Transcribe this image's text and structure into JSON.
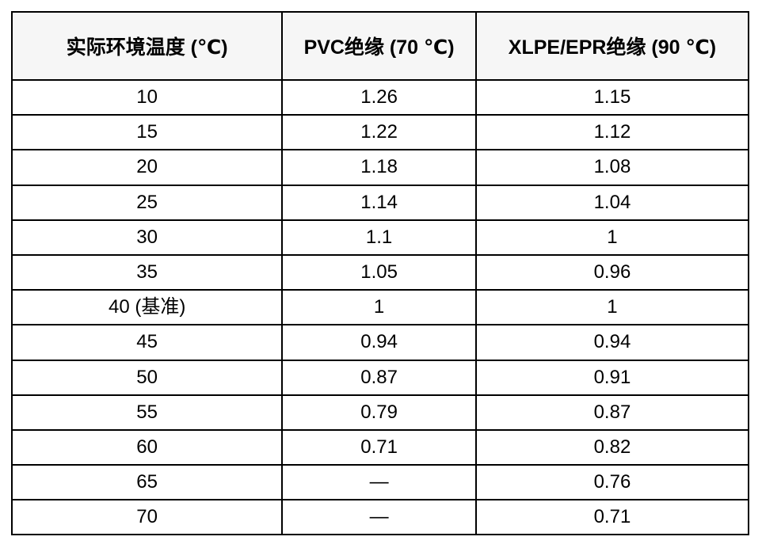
{
  "colors": {
    "header_bg": "#f6f6f6",
    "border": "#000000",
    "text": "#000000",
    "page_bg": "#ffffff"
  },
  "table": {
    "columns": [
      "实际环境温度 (℃)",
      "PVC绝缘 (70 ℃)",
      "XLPE/EPR绝缘 (90 ℃)"
    ],
    "rows": [
      [
        "10",
        "1.26",
        "1.15"
      ],
      [
        "15",
        "1.22",
        "1.12"
      ],
      [
        "20",
        "1.18",
        "1.08"
      ],
      [
        "25",
        "1.14",
        "1.04"
      ],
      [
        "30",
        "1.1",
        "1"
      ],
      [
        "35",
        "1.05",
        "0.96"
      ],
      [
        "40 (基准)",
        "1",
        "1"
      ],
      [
        "45",
        "0.94",
        "0.94"
      ],
      [
        "50",
        "0.87",
        "0.91"
      ],
      [
        "55",
        "0.79",
        "0.87"
      ],
      [
        "60",
        "0.71",
        "0.82"
      ],
      [
        "65",
        "—",
        "0.76"
      ],
      [
        "70",
        "—",
        "0.71"
      ]
    ]
  }
}
